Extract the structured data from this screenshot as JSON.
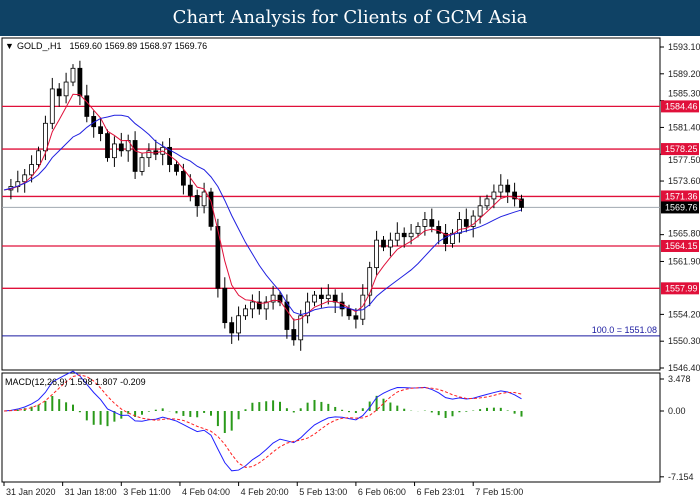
{
  "title": "Chart Analysis for Clients of GCM Asia",
  "chart_data": {
    "type": "candlestick",
    "symbol_label": "GOLD_,H1",
    "ohlc_label": "1569.60 1569.89 1568.97 1569.76",
    "closes": [
      1572.3,
      1572.8,
      1573.5,
      1574.5,
      1576,
      1578,
      1582,
      1587,
      1586,
      1588,
      1590,
      1586,
      1583,
      1581.5,
      1580.5,
      1577,
      1579,
      1578,
      1579.5,
      1575,
      1577,
      1578,
      1577.5,
      1578.5,
      1576,
      1575,
      1573,
      1571.5,
      1570,
      1572,
      1567,
      1558,
      1553,
      1551.5,
      1554,
      1555,
      1556,
      1555,
      1556,
      1557,
      1556,
      1552,
      1550.5,
      1554,
      1556,
      1557,
      1556.5,
      1557,
      1556,
      1555,
      1554,
      1553.5,
      1557,
      1561,
      1565,
      1564,
      1565,
      1566,
      1565.5,
      1566,
      1567,
      1568,
      1567,
      1566,
      1564.5,
      1566,
      1568,
      1567,
      1568.5,
      1570,
      1571,
      1572,
      1573,
      1572,
      1571,
      1569.76
    ],
    "ylim": [
      1546.4,
      1593.1
    ],
    "y_ticks": [
      "1593.10",
      "1589.20",
      "1585.30",
      "1581.40",
      "1577.50",
      "1573.60",
      "1565.80",
      "1561.90",
      "1554.20",
      "1550.30",
      "1546.40"
    ],
    "x_ticks": [
      {
        "index": 0,
        "label": "31 Jan 2020"
      },
      {
        "index": 8.5,
        "label": "31 Jan 18:00"
      },
      {
        "index": 17,
        "label": "3 Feb 11:00"
      },
      {
        "index": 25.5,
        "label": "4 Feb 04:00"
      },
      {
        "index": 34,
        "label": "4 Feb 20:00"
      },
      {
        "index": 42.5,
        "label": "5 Feb 13:00"
      },
      {
        "index": 51,
        "label": "6 Feb 06:00"
      },
      {
        "index": 59.5,
        "label": "6 Feb 23:01"
      },
      {
        "index": 68,
        "label": "7 Feb 15:00"
      }
    ],
    "levels": [
      {
        "value": 1584.46,
        "label": "1584.46",
        "color": "#e0103a"
      },
      {
        "value": 1578.25,
        "label": "1578.25",
        "color": "#e0103a"
      },
      {
        "value": 1571.36,
        "label": "1571.36",
        "color": "#e0103a"
      },
      {
        "value": 1564.15,
        "label": "1564.15",
        "color": "#e0103a"
      },
      {
        "value": 1557.99,
        "label": "1557.99",
        "color": "#e0103a"
      }
    ],
    "current_price": {
      "value": 1569.76,
      "label": "1569.76"
    },
    "fib_level": {
      "value": 1551.08,
      "label": "100.0 = 1551.08",
      "color": "#1a1aa0"
    },
    "moving_averages": [
      {
        "color": "#e0103a"
      },
      {
        "color": "#2020e0"
      }
    ],
    "macd": {
      "label": "MACD(12,26,9) 1.598 1.807 -0.209",
      "ylim": [
        -7.154,
        3.478
      ],
      "y_ticks": [
        "3.478",
        "0.00",
        "-7.154"
      ],
      "colors": {
        "macd": "#2020ff",
        "signal": "#ff2020",
        "histogram": "#2a9a1a"
      }
    }
  }
}
